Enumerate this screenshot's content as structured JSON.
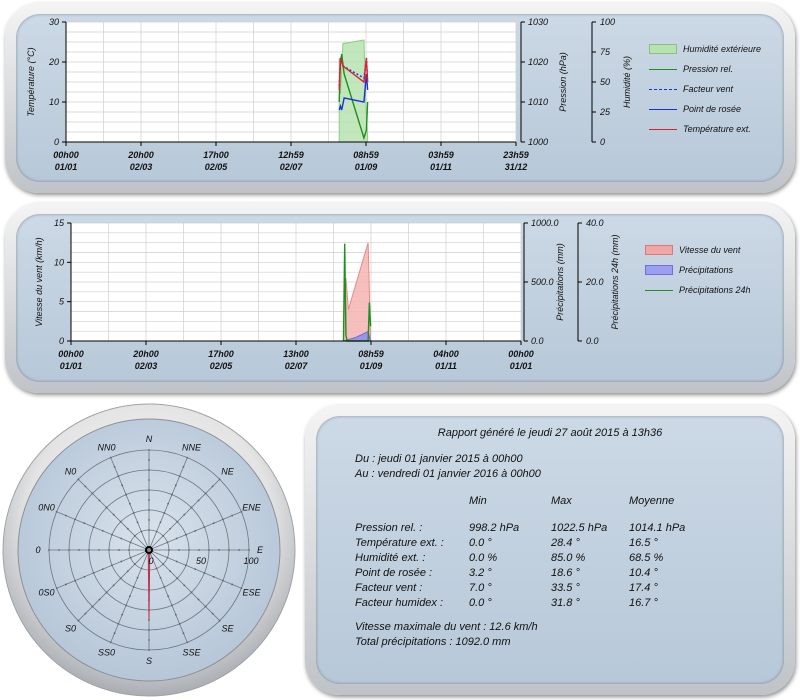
{
  "colors": {
    "humidity": "#8fd08f",
    "pressure": "#1f8f1f",
    "windchill": "#1a2fe0",
    "dewpoint": "#1a2fe0",
    "temperature": "#dd1f2f",
    "windspeed": "#f08a8a",
    "rain": "#7f7ff0",
    "rain24": "#1f8f1f"
  },
  "chart1": {
    "y_left_label": "Température (°C)",
    "y_mid_label": "Pression (hPa)",
    "y_right_label": "Humidité (%)",
    "y_left_ticks": [
      "30",
      "20",
      "10",
      "0"
    ],
    "y_mid_ticks": [
      "1030",
      "1020",
      "1010",
      "1000"
    ],
    "y_right_ticks": [
      "100",
      "75",
      "50",
      "25",
      "0"
    ],
    "x_ticks_time": [
      "00h00",
      "20h00",
      "17h00",
      "12h59",
      "08h59",
      "03h59",
      "23h59"
    ],
    "x_ticks_date": [
      "01/01",
      "02/03",
      "02/05",
      "02/07",
      "01/09",
      "01/11",
      "31/12"
    ],
    "legend": [
      "Humidité extérieure",
      "Pression rel.",
      "Facteur vent",
      "Point de rosée",
      "Température ext."
    ]
  },
  "chart2": {
    "y_left_label": "Vitesse du vent (km/h)",
    "y_mid_label": "Précipitations (mm)",
    "y_right_label": "Précipitations 24h (mm)",
    "y_left_ticks": [
      "15",
      "10",
      "5",
      "0"
    ],
    "y_mid_ticks": [
      "1000.0",
      "500.0",
      "0.0"
    ],
    "y_right_ticks": [
      "40.0",
      "20.0",
      "0.0"
    ],
    "x_ticks_time": [
      "00h00",
      "20h00",
      "17h00",
      "13h00",
      "08h59",
      "04h00",
      "00h00"
    ],
    "x_ticks_date": [
      "01/01",
      "02/03",
      "02/05",
      "02/07",
      "01/09",
      "01/11",
      "01/01"
    ],
    "legend": [
      "Vitesse du vent",
      "Précipitations",
      "Précipitations 24h"
    ]
  },
  "chart_data": [
    {
      "type": "line",
      "xlabel": "",
      "ylabel": "Température (°C)",
      "ylim": [
        0,
        30
      ],
      "y2label": "Pression (hPa)",
      "y2lim": [
        1000,
        1030
      ],
      "y3label": "Humidité (%)",
      "y3lim": [
        0,
        100
      ],
      "x_domain": [
        "2015-01-01",
        "2015-12-31"
      ],
      "grid": true,
      "legend_position": "right",
      "series": [
        {
          "name": "Humidité extérieure",
          "kind": "area",
          "axis": "y3",
          "x": [
            "2015-08-10",
            "2015-08-11",
            "2015-08-13",
            "2015-08-30",
            "2015-09-01",
            "2015-09-02"
          ],
          "values": [
            70,
            40,
            82,
            85,
            20,
            5
          ]
        },
        {
          "name": "Pression rel.",
          "kind": "line",
          "axis": "y2",
          "x": [
            "2015-08-10",
            "2015-08-11",
            "2015-08-12",
            "2015-08-14",
            "2015-08-30",
            "2015-09-01",
            "2015-09-02"
          ],
          "values": [
            1010,
            1020,
            1022,
            1017,
            1001,
            1003,
            1010
          ]
        },
        {
          "name": "Facteur vent",
          "kind": "line",
          "axis": "y1",
          "x": [
            "2015-08-10",
            "2015-08-11",
            "2015-08-13",
            "2015-08-30",
            "2015-09-01",
            "2015-09-02"
          ],
          "values": [
            14,
            21,
            19,
            16,
            21,
            15
          ]
        },
        {
          "name": "Point de rosée",
          "kind": "line",
          "axis": "y1",
          "x": [
            "2015-08-10",
            "2015-08-11",
            "2015-08-12",
            "2015-08-14",
            "2015-08-30",
            "2015-09-01",
            "2015-09-02"
          ],
          "values": [
            8,
            9,
            8,
            11,
            10,
            17,
            13
          ]
        },
        {
          "name": "Température ext.",
          "kind": "line",
          "axis": "y1",
          "x": [
            "2015-08-10",
            "2015-08-11",
            "2015-08-13",
            "2015-08-30",
            "2015-09-01",
            "2015-09-02"
          ],
          "values": [
            13,
            21,
            19,
            15,
            21,
            15
          ]
        }
      ]
    },
    {
      "type": "line",
      "xlabel": "",
      "ylabel": "Vitesse du vent (km/h)",
      "ylim": [
        0,
        15
      ],
      "y2label": "Précipitations (mm)",
      "y2lim": [
        0,
        1000
      ],
      "y3label": "Précipitations 24h (mm)",
      "y3lim": [
        0,
        40
      ],
      "x_domain": [
        "2015-01-01",
        "2016-01-01"
      ],
      "grid": true,
      "legend_position": "right",
      "series": [
        {
          "name": "Vitesse du vent",
          "kind": "area",
          "axis": "y1",
          "x": [
            "2015-08-10",
            "2015-08-11",
            "2015-08-12",
            "2015-08-14",
            "2015-08-30",
            "2015-09-01"
          ],
          "values": [
            0,
            6.5,
            8,
            4,
            12.5,
            0
          ]
        },
        {
          "name": "Précipitations",
          "kind": "area",
          "axis": "y2",
          "x": [
            "2015-08-10",
            "2015-08-20",
            "2015-08-30",
            "2015-09-01"
          ],
          "values": [
            0,
            30,
            80,
            0
          ]
        },
        {
          "name": "Précipitations 24h",
          "kind": "line",
          "axis": "y3",
          "x": [
            "2015-08-10",
            "2015-08-11",
            "2015-08-12",
            "2015-08-13",
            "2015-08-30",
            "2015-08-31",
            "2015-09-01"
          ],
          "values": [
            0,
            33,
            2,
            0,
            0,
            13,
            5
          ]
        }
      ]
    },
    {
      "type": "radar",
      "title": "",
      "directions": [
        "N",
        "NNE",
        "NE",
        "ENE",
        "E",
        "ESE",
        "SE",
        "SSE",
        "S",
        "SS0",
        "S0",
        "0S0",
        "0",
        "0N0",
        "N0",
        "NN0"
      ],
      "rlim": [
        0,
        100
      ],
      "r_ticks": [
        "0",
        "50",
        "100"
      ],
      "values": [
        0,
        0,
        0,
        0,
        0,
        0,
        0,
        2,
        70,
        2,
        0,
        0,
        0,
        0,
        0,
        0
      ]
    }
  ],
  "report": {
    "title": "Rapport généré le jeudi 27 août 2015 à 13h36",
    "from": "Du : jeudi 01 janvier 2015 à 00h00",
    "to": "Au : vendredi 01 janvier 2016 à 00h00",
    "col_min": "Min",
    "col_max": "Max",
    "col_avg": "Moyenne",
    "rows": [
      {
        "label": "Pression rel. :",
        "min": "998.2 hPa",
        "max": "1022.5 hPa",
        "avg": "1014.1 hPa"
      },
      {
        "label": "Température ext. :",
        "min": "0.0 °",
        "max": "28.4 °",
        "avg": "16.5 °"
      },
      {
        "label": "Humidité ext. :",
        "min": "0.0 %",
        "max": "85.0 %",
        "avg": "68.5 %"
      },
      {
        "label": "Point de rosée :",
        "min": "3.2 °",
        "max": "18.6 °",
        "avg": "10.4 °"
      },
      {
        "label": "Facteur vent :",
        "min": "7.0 °",
        "max": "33.5 °",
        "avg": "17.4 °"
      },
      {
        "label": "Facteur humidex :",
        "min": "0.0 °",
        "max": "31.8 °",
        "avg": "16.7 °"
      }
    ],
    "max_wind": "Vitesse maximale du vent : 12.6 km/h",
    "total_rain": "Total précipitations : 1092.0 mm"
  }
}
